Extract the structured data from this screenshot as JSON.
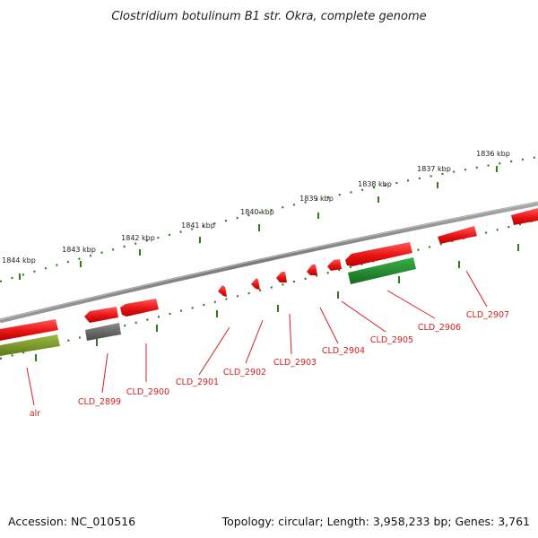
{
  "title": "Clostridium botulinum B1 str. Okra, complete genome",
  "footer": {
    "accession": "Accession: NC_010516",
    "summary": "Topology: circular; Length: 3,958,233 bp; Genes: 3,761"
  },
  "scale_labels": [
    {
      "text": "1836 kbp",
      "pos_kbp": 1836
    },
    {
      "text": "1837 kbp",
      "pos_kbp": 1837
    },
    {
      "text": "1838 kbp",
      "pos_kbp": 1838
    },
    {
      "text": "1839 kbp",
      "pos_kbp": 1839
    },
    {
      "text": "1840 kbp",
      "pos_kbp": 1840
    },
    {
      "text": "1841 kbp",
      "pos_kbp": 1841
    },
    {
      "text": "1842 kbp",
      "pos_kbp": 1842
    },
    {
      "text": "1843 kbp",
      "pos_kbp": 1843
    },
    {
      "text": "1844 kbp",
      "pos_kbp": 1844
    }
  ],
  "genes": [
    {
      "name": "alr",
      "strand": "-",
      "color": "#7a9a2a"
    },
    {
      "name": "CLD_2899",
      "strand": "-",
      "color": "#666666"
    },
    {
      "name": "CLD_2900",
      "strand": "+",
      "color": "#e01818"
    },
    {
      "name": "CLD_2901",
      "strand": "+",
      "color": "#e01818"
    },
    {
      "name": "CLD_2902",
      "strand": "+",
      "color": "#e01818"
    },
    {
      "name": "CLD_2903",
      "strand": "+",
      "color": "#e01818"
    },
    {
      "name": "CLD_2904",
      "strand": "+",
      "color": "#e01818"
    },
    {
      "name": "CLD_2905",
      "strand": "+",
      "color": "#e01818"
    },
    {
      "name": "CLD_2906",
      "strand": "-",
      "color": "#228b22"
    },
    {
      "name": "CLD_2907",
      "strand": "+",
      "color": "#e01818"
    }
  ],
  "colors": {
    "backbone": "#7f7f7f",
    "scale_ticks": "#2e7d1a",
    "gene_label": "#d42020"
  }
}
